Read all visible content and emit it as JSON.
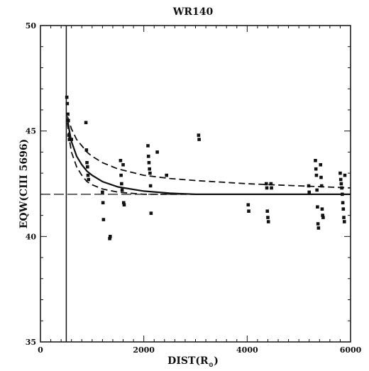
{
  "chart_data": {
    "type": "scatter",
    "title": "WR140",
    "xlabel": "DIST(R",
    "xlabel_sub": "⊙",
    "xlabel_close": ")",
    "ylabel": "EQW(CIII 5696)",
    "xlim": [
      0,
      6000
    ],
    "ylim": [
      35,
      50
    ],
    "x_ticks": [
      0,
      2000,
      4000,
      6000
    ],
    "y_ticks": [
      35,
      40,
      45,
      50
    ],
    "reference_lines": {
      "horizontal_dashed_y": 42,
      "vertical_solid_x": 500
    },
    "points": [
      [
        510,
        46.6
      ],
      [
        520,
        46.3
      ],
      [
        530,
        45.8
      ],
      [
        540,
        45.5
      ],
      [
        550,
        44.8
      ],
      [
        560,
        44.6
      ],
      [
        600,
        44.6
      ],
      [
        880,
        45.4
      ],
      [
        890,
        44.1
      ],
      [
        900,
        43.5
      ],
      [
        910,
        43.3
      ],
      [
        920,
        42.9
      ],
      [
        930,
        42.7
      ],
      [
        1200,
        42.1
      ],
      [
        1210,
        41.6
      ],
      [
        1220,
        40.8
      ],
      [
        1340,
        39.9
      ],
      [
        1350,
        40.0
      ],
      [
        1550,
        43.6
      ],
      [
        1560,
        42.9
      ],
      [
        1570,
        42.5
      ],
      [
        1580,
        42.2
      ],
      [
        1600,
        43.4
      ],
      [
        1610,
        41.6
      ],
      [
        1620,
        41.5
      ],
      [
        2080,
        44.3
      ],
      [
        2090,
        43.8
      ],
      [
        2100,
        43.5
      ],
      [
        2110,
        43.2
      ],
      [
        2120,
        43.0
      ],
      [
        2130,
        42.4
      ],
      [
        2140,
        41.1
      ],
      [
        2260,
        44.0
      ],
      [
        2440,
        42.9
      ],
      [
        3060,
        44.8
      ],
      [
        3070,
        44.6
      ],
      [
        4020,
        41.5
      ],
      [
        4030,
        41.2
      ],
      [
        4370,
        42.5
      ],
      [
        4380,
        42.3
      ],
      [
        4390,
        41.2
      ],
      [
        4400,
        40.9
      ],
      [
        4410,
        40.7
      ],
      [
        4460,
        42.5
      ],
      [
        4470,
        42.3
      ],
      [
        5190,
        42.4
      ],
      [
        5200,
        42.1
      ],
      [
        5320,
        43.6
      ],
      [
        5330,
        43.2
      ],
      [
        5340,
        42.9
      ],
      [
        5350,
        42.2
      ],
      [
        5360,
        41.4
      ],
      [
        5370,
        40.6
      ],
      [
        5380,
        40.4
      ],
      [
        5420,
        43.4
      ],
      [
        5430,
        42.8
      ],
      [
        5440,
        42.4
      ],
      [
        5450,
        41.3
      ],
      [
        5460,
        41.0
      ],
      [
        5470,
        40.9
      ],
      [
        5800,
        43.0
      ],
      [
        5810,
        42.7
      ],
      [
        5820,
        42.5
      ],
      [
        5830,
        42.3
      ],
      [
        5840,
        42.0
      ],
      [
        5850,
        41.6
      ],
      [
        5860,
        41.3
      ],
      [
        5870,
        40.9
      ],
      [
        5880,
        40.7
      ],
      [
        5890,
        42.9
      ]
    ],
    "models": [
      {
        "style": "solid",
        "x": [
          520,
          560,
          600,
          700,
          800,
          900,
          1000,
          1200,
          1500,
          2000,
          2500,
          3000,
          4000,
          5000,
          6000
        ],
        "y": [
          45.6,
          45.0,
          44.5,
          43.8,
          43.4,
          43.1,
          42.9,
          42.6,
          42.35,
          42.15,
          42.05,
          42.0,
          42.0,
          42.0,
          42.0
        ]
      },
      {
        "style": "dashed",
        "x": [
          520,
          560,
          600,
          700,
          800,
          900,
          1000,
          1200,
          1500,
          2000,
          2500,
          3000,
          4000,
          5000,
          6000
        ],
        "y": [
          45.7,
          45.4,
          45.1,
          44.6,
          44.3,
          44.0,
          43.8,
          43.5,
          43.2,
          42.9,
          42.75,
          42.65,
          42.5,
          42.4,
          42.3
        ]
      },
      {
        "style": "dashed",
        "x": [
          520,
          560,
          600,
          700,
          800,
          900,
          1000,
          1200,
          1500,
          2000,
          3000,
          4000,
          6000
        ],
        "y": [
          45.4,
          44.6,
          44.0,
          43.3,
          42.9,
          42.6,
          42.45,
          42.25,
          42.1,
          42.0,
          42.0,
          42.0,
          42.0
        ]
      }
    ]
  }
}
